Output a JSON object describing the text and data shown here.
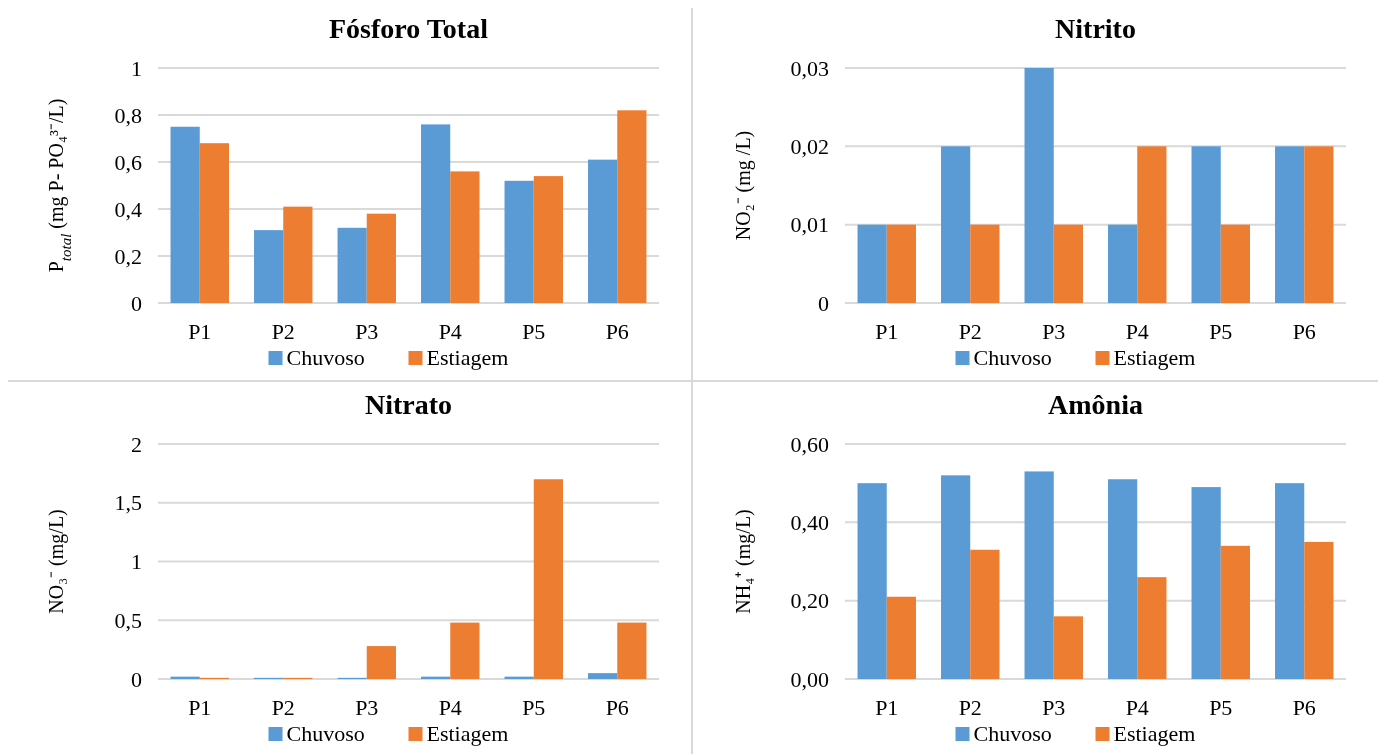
{
  "chart_data": [
    {
      "type": "bar",
      "title": "Fósforo Total",
      "ylabel": "P$_{total}$ (mg P- PO₄³⁻/L)",
      "categories": [
        "P1",
        "P2",
        "P3",
        "P4",
        "P5",
        "P6"
      ],
      "series": [
        {
          "name": "Chuvoso",
          "color": "#5b9bd5",
          "values": [
            0.75,
            0.31,
            0.32,
            0.76,
            0.52,
            0.61
          ]
        },
        {
          "name": "Estiagem",
          "color": "#ed7d31",
          "values": [
            0.68,
            0.41,
            0.38,
            0.56,
            0.54,
            0.82
          ]
        }
      ],
      "ylim": [
        0,
        1
      ],
      "yticks": [
        0,
        {
          "value": 0.2,
          "label": "0,2"
        },
        {
          "value": 0.4,
          "label": "0,4"
        },
        {
          "value": 0.6,
          "label": "0,6"
        },
        {
          "value": 0.8,
          "label": "0,8"
        },
        1
      ],
      "grid": "y",
      "legend": "bottom"
    },
    {
      "type": "bar",
      "title": "Nitrito",
      "ylabel": "NO₂⁻ (mg /L)",
      "categories": [
        "P1",
        "P2",
        "P3",
        "P4",
        "P5",
        "P6"
      ],
      "series": [
        {
          "name": "Chuvoso",
          "color": "#5b9bd5",
          "values": [
            0.01,
            0.02,
            0.03,
            0.01,
            0.02,
            0.02
          ]
        },
        {
          "name": "Estiagem",
          "color": "#ed7d31",
          "values": [
            0.01,
            0.01,
            0.01,
            0.02,
            0.01,
            0.02
          ]
        }
      ],
      "ylim": [
        0,
        0.03
      ],
      "yticks": [
        0,
        {
          "value": 0.01,
          "label": "0,01"
        },
        {
          "value": 0.02,
          "label": "0,02"
        },
        {
          "value": 0.03,
          "label": "0,03"
        }
      ],
      "grid": "y",
      "legend": "bottom"
    },
    {
      "type": "bar",
      "title": "Nitrato",
      "ylabel": "NO₃⁻ (mg/L)",
      "categories": [
        "P1",
        "P2",
        "P3",
        "P4",
        "P5",
        "P6"
      ],
      "series": [
        {
          "name": "Chuvoso",
          "color": "#5b9bd5",
          "values": [
            0.02,
            0.01,
            0.01,
            0.02,
            0.02,
            0.05
          ]
        },
        {
          "name": "Estiagem",
          "color": "#ed7d31",
          "values": [
            0.01,
            0.01,
            0.28,
            0.48,
            1.7,
            0.48
          ]
        }
      ],
      "ylim": [
        0,
        2
      ],
      "yticks": [
        0,
        {
          "value": 0.5,
          "label": "0,5"
        },
        1,
        {
          "value": 1.5,
          "label": "1,5"
        },
        2
      ],
      "grid": "y",
      "legend": "bottom"
    },
    {
      "type": "bar",
      "title": "Amônia",
      "ylabel": "NH₄⁺ (mg/L)",
      "categories": [
        "P1",
        "P2",
        "P3",
        "P4",
        "P5",
        "P6"
      ],
      "series": [
        {
          "name": "Chuvoso",
          "color": "#5b9bd5",
          "values": [
            0.5,
            0.52,
            0.53,
            0.51,
            0.49,
            0.5
          ]
        },
        {
          "name": "Estiagem",
          "color": "#ed7d31",
          "values": [
            0.21,
            0.33,
            0.16,
            0.26,
            0.34,
            0.35
          ]
        }
      ],
      "ylim": [
        0,
        0.6
      ],
      "yticks": [
        {
          "value": 0,
          "label": "0,00"
        },
        {
          "value": 0.2,
          "label": "0,20"
        },
        {
          "value": 0.4,
          "label": "0,40"
        },
        {
          "value": 0.6,
          "label": "0,60"
        }
      ],
      "grid": "y",
      "legend": "bottom"
    }
  ]
}
